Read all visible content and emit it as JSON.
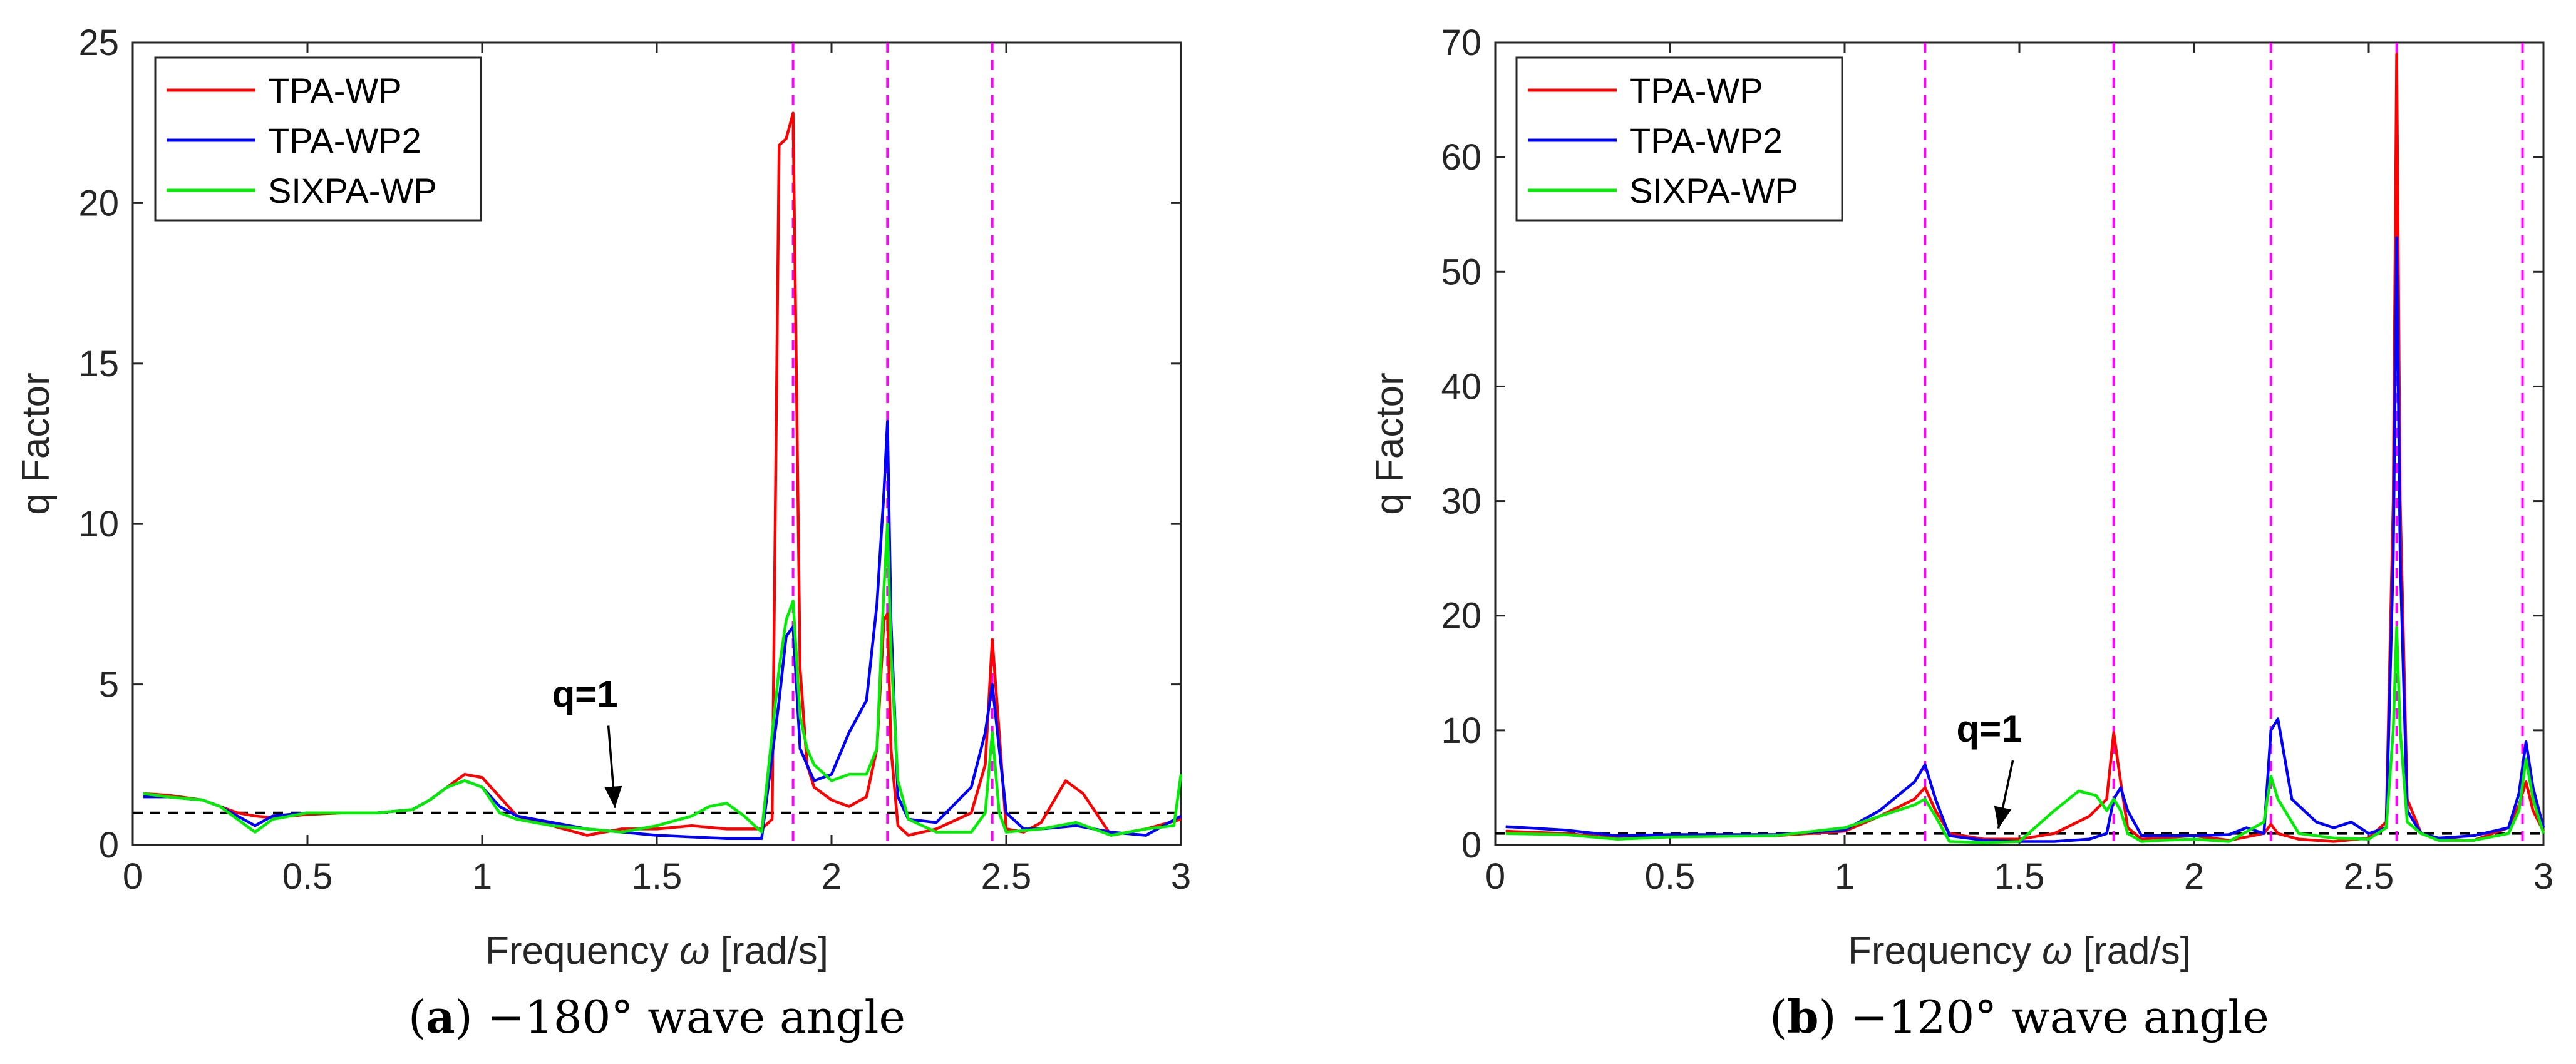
{
  "chart_data": [
    {
      "type": "line",
      "panel_letter": "a",
      "caption_rest": " −180° wave angle",
      "xlabel_pre": "Frequency ",
      "xlabel_omega": "ω",
      "xlabel_post": " [rad/s]",
      "ylabel": "q Factor",
      "xlim": [
        0,
        3
      ],
      "ylim": [
        0,
        25
      ],
      "xticks": [
        0,
        0.5,
        1,
        1.5,
        2,
        2.5,
        3
      ],
      "xtick_labels": [
        "0",
        "0.5",
        "1",
        "1.5",
        "2",
        "2.5",
        "3"
      ],
      "yticks": [
        0,
        5,
        10,
        15,
        20,
        25
      ],
      "ytick_labels": [
        "0",
        "5",
        "10",
        "15",
        "20",
        "25"
      ],
      "legend_position": "top-left",
      "vlines": [
        1.89,
        2.16,
        2.46
      ],
      "hline": {
        "y": 1,
        "label": "q=1",
        "text_x": 1.2,
        "text_y": 4.3,
        "arrow_to_x": 1.38
      },
      "series": [
        {
          "name": "TPA-WP",
          "color": "#ff0000",
          "x": [
            0.03,
            0.1,
            0.2,
            0.25,
            0.3,
            0.35,
            0.4,
            0.5,
            0.6,
            0.7,
            0.8,
            0.85,
            0.9,
            0.95,
            1.0,
            1.05,
            1.1,
            1.2,
            1.3,
            1.4,
            1.5,
            1.6,
            1.7,
            1.8,
            1.83,
            1.85,
            1.87,
            1.89,
            1.91,
            1.93,
            1.95,
            2.0,
            2.05,
            2.1,
            2.13,
            2.15,
            2.16,
            2.17,
            2.19,
            2.22,
            2.3,
            2.4,
            2.44,
            2.46,
            2.48,
            2.5,
            2.55,
            2.6,
            2.67,
            2.72,
            2.8,
            2.9,
            3.0
          ],
          "y": [
            1.6,
            1.55,
            1.4,
            1.2,
            1.0,
            0.9,
            0.85,
            0.95,
            1.0,
            1.0,
            1.1,
            1.4,
            1.8,
            2.2,
            2.1,
            1.5,
            0.9,
            0.6,
            0.3,
            0.5,
            0.5,
            0.6,
            0.5,
            0.5,
            0.8,
            21.8,
            22.0,
            22.8,
            5.5,
            2.5,
            1.8,
            1.4,
            1.2,
            1.5,
            3.0,
            7.0,
            7.2,
            3.0,
            0.6,
            0.3,
            0.5,
            1.0,
            2.5,
            6.4,
            3.5,
            0.5,
            0.4,
            0.7,
            2.0,
            1.6,
            0.3,
            0.5,
            0.8
          ]
        },
        {
          "name": "TPA-WP2",
          "color": "#0000ff",
          "x": [
            0.03,
            0.1,
            0.2,
            0.25,
            0.3,
            0.35,
            0.4,
            0.5,
            0.6,
            0.7,
            0.8,
            0.85,
            0.9,
            0.95,
            1.0,
            1.05,
            1.1,
            1.2,
            1.3,
            1.4,
            1.5,
            1.6,
            1.7,
            1.8,
            1.85,
            1.87,
            1.89,
            1.91,
            1.93,
            1.95,
            2.0,
            2.05,
            2.1,
            2.13,
            2.15,
            2.16,
            2.17,
            2.19,
            2.22,
            2.3,
            2.4,
            2.44,
            2.46,
            2.48,
            2.5,
            2.55,
            2.6,
            2.7,
            2.8,
            2.9,
            3.0
          ],
          "y": [
            1.5,
            1.5,
            1.4,
            1.2,
            0.9,
            0.6,
            0.9,
            1.0,
            1.0,
            1.0,
            1.1,
            1.4,
            1.8,
            2.0,
            1.8,
            1.2,
            0.9,
            0.7,
            0.5,
            0.4,
            0.3,
            0.25,
            0.2,
            0.2,
            4.5,
            6.5,
            6.8,
            3.0,
            2.5,
            2.0,
            2.2,
            3.5,
            4.5,
            7.5,
            11.0,
            13.2,
            7.0,
            1.5,
            0.8,
            0.7,
            1.8,
            3.5,
            5.0,
            3.0,
            1.0,
            0.5,
            0.5,
            0.6,
            0.4,
            0.3,
            0.9
          ]
        },
        {
          "name": "SIXPA-WP",
          "color": "#00ee00",
          "x": [
            0.03,
            0.1,
            0.2,
            0.25,
            0.3,
            0.35,
            0.4,
            0.5,
            0.6,
            0.7,
            0.8,
            0.85,
            0.9,
            0.95,
            1.0,
            1.05,
            1.1,
            1.2,
            1.3,
            1.4,
            1.5,
            1.6,
            1.65,
            1.7,
            1.75,
            1.8,
            1.85,
            1.87,
            1.89,
            1.91,
            1.93,
            1.95,
            2.0,
            2.05,
            2.1,
            2.13,
            2.15,
            2.16,
            2.17,
            2.19,
            2.22,
            2.3,
            2.4,
            2.44,
            2.46,
            2.48,
            2.5,
            2.6,
            2.7,
            2.8,
            2.9,
            2.98,
            3.0
          ],
          "y": [
            1.6,
            1.5,
            1.4,
            1.2,
            0.8,
            0.4,
            0.8,
            1.0,
            1.0,
            1.0,
            1.1,
            1.4,
            1.8,
            2.0,
            1.8,
            1.0,
            0.8,
            0.6,
            0.5,
            0.4,
            0.6,
            0.9,
            1.2,
            1.3,
            0.9,
            0.4,
            5.5,
            7.0,
            7.6,
            4.0,
            3.0,
            2.5,
            2.0,
            2.2,
            2.2,
            3.0,
            8.0,
            10.0,
            6.0,
            2.0,
            0.8,
            0.4,
            0.4,
            1.0,
            3.5,
            1.0,
            0.4,
            0.5,
            0.7,
            0.3,
            0.5,
            0.6,
            2.2
          ]
        }
      ]
    },
    {
      "type": "line",
      "panel_letter": "b",
      "caption_rest": " −120° wave angle",
      "xlabel_pre": "Frequency ",
      "xlabel_omega": "ω",
      "xlabel_post": " [rad/s]",
      "ylabel": "q Factor",
      "xlim": [
        0,
        3
      ],
      "ylim": [
        0,
        70
      ],
      "xticks": [
        0,
        0.5,
        1,
        1.5,
        2,
        2.5,
        3
      ],
      "xtick_labels": [
        "0",
        "0.5",
        "1",
        "1.5",
        "2",
        "2.5",
        "3"
      ],
      "yticks": [
        0,
        10,
        20,
        30,
        40,
        50,
        60,
        70
      ],
      "ytick_labels": [
        "0",
        "10",
        "20",
        "30",
        "40",
        "50",
        "60",
        "70"
      ],
      "legend_position": "top-left",
      "vlines": [
        1.23,
        1.77,
        2.22,
        2.58,
        2.94
      ],
      "hline": {
        "y": 1,
        "label": "q=1",
        "text_x": 1.32,
        "text_y": 9,
        "arrow_to_x": 1.44
      },
      "series": [
        {
          "name": "TPA-WP",
          "color": "#ff0000",
          "x": [
            0.03,
            0.2,
            0.35,
            0.5,
            0.8,
            1.0,
            1.1,
            1.2,
            1.23,
            1.26,
            1.3,
            1.4,
            1.5,
            1.6,
            1.7,
            1.75,
            1.77,
            1.79,
            1.81,
            1.85,
            1.9,
            2.0,
            2.1,
            2.2,
            2.22,
            2.24,
            2.3,
            2.4,
            2.5,
            2.55,
            2.57,
            2.58,
            2.59,
            2.61,
            2.65,
            2.7,
            2.8,
            2.9,
            2.93,
            2.95,
            2.97,
            3.0
          ],
          "y": [
            1.2,
            1.0,
            0.6,
            0.8,
            0.8,
            1.2,
            2.5,
            4.0,
            5.0,
            3.0,
            1.0,
            0.5,
            0.5,
            1.0,
            2.5,
            4.0,
            9.8,
            5.5,
            1.5,
            0.5,
            0.6,
            0.8,
            0.4,
            1.0,
            1.8,
            1.0,
            0.5,
            0.3,
            0.6,
            2.0,
            30.0,
            69.0,
            30.0,
            4.0,
            1.0,
            0.5,
            0.4,
            1.5,
            3.5,
            5.5,
            3.0,
            1.2
          ]
        },
        {
          "name": "TPA-WP2",
          "color": "#0000ff",
          "x": [
            0.03,
            0.2,
            0.35,
            0.5,
            0.8,
            1.0,
            1.1,
            1.2,
            1.23,
            1.26,
            1.3,
            1.4,
            1.5,
            1.6,
            1.7,
            1.75,
            1.77,
            1.79,
            1.81,
            1.85,
            1.9,
            2.0,
            2.1,
            2.15,
            2.2,
            2.22,
            2.24,
            2.28,
            2.35,
            2.4,
            2.45,
            2.5,
            2.55,
            2.57,
            2.58,
            2.59,
            2.61,
            2.65,
            2.7,
            2.8,
            2.9,
            2.93,
            2.95,
            2.97,
            3.0
          ],
          "y": [
            1.6,
            1.3,
            0.8,
            0.9,
            0.9,
            1.3,
            3.0,
            5.5,
            7.0,
            4.0,
            0.8,
            0.4,
            0.3,
            0.3,
            0.5,
            1.0,
            4.0,
            5.0,
            3.0,
            0.8,
            0.8,
            0.8,
            0.9,
            1.5,
            1.0,
            10.0,
            11.0,
            4.0,
            2.0,
            1.5,
            2.0,
            1.0,
            1.5,
            25.0,
            53.0,
            25.0,
            3.0,
            1.0,
            0.6,
            0.8,
            1.5,
            4.5,
            9.0,
            5.0,
            1.5
          ]
        },
        {
          "name": "SIXPA-WP",
          "color": "#00ee00",
          "x": [
            0.03,
            0.2,
            0.35,
            0.5,
            0.8,
            1.0,
            1.1,
            1.2,
            1.23,
            1.26,
            1.3,
            1.4,
            1.5,
            1.6,
            1.67,
            1.72,
            1.75,
            1.77,
            1.79,
            1.81,
            1.85,
            1.9,
            2.0,
            2.1,
            2.2,
            2.22,
            2.24,
            2.3,
            2.4,
            2.5,
            2.55,
            2.57,
            2.58,
            2.59,
            2.61,
            2.65,
            2.7,
            2.8,
            2.9,
            2.93,
            2.95,
            2.97,
            3.0
          ],
          "y": [
            1.0,
            0.9,
            0.5,
            0.7,
            0.8,
            1.5,
            2.5,
            3.5,
            4.0,
            2.5,
            0.3,
            0.2,
            0.3,
            3.0,
            4.7,
            4.3,
            3.0,
            4.0,
            3.0,
            1.0,
            0.3,
            0.4,
            0.5,
            0.3,
            2.0,
            6.0,
            4.0,
            1.0,
            0.6,
            0.5,
            1.5,
            10.0,
            19.0,
            10.0,
            2.0,
            1.0,
            0.4,
            0.4,
            1.0,
            3.0,
            7.5,
            4.0,
            1.0
          ]
        }
      ]
    }
  ]
}
